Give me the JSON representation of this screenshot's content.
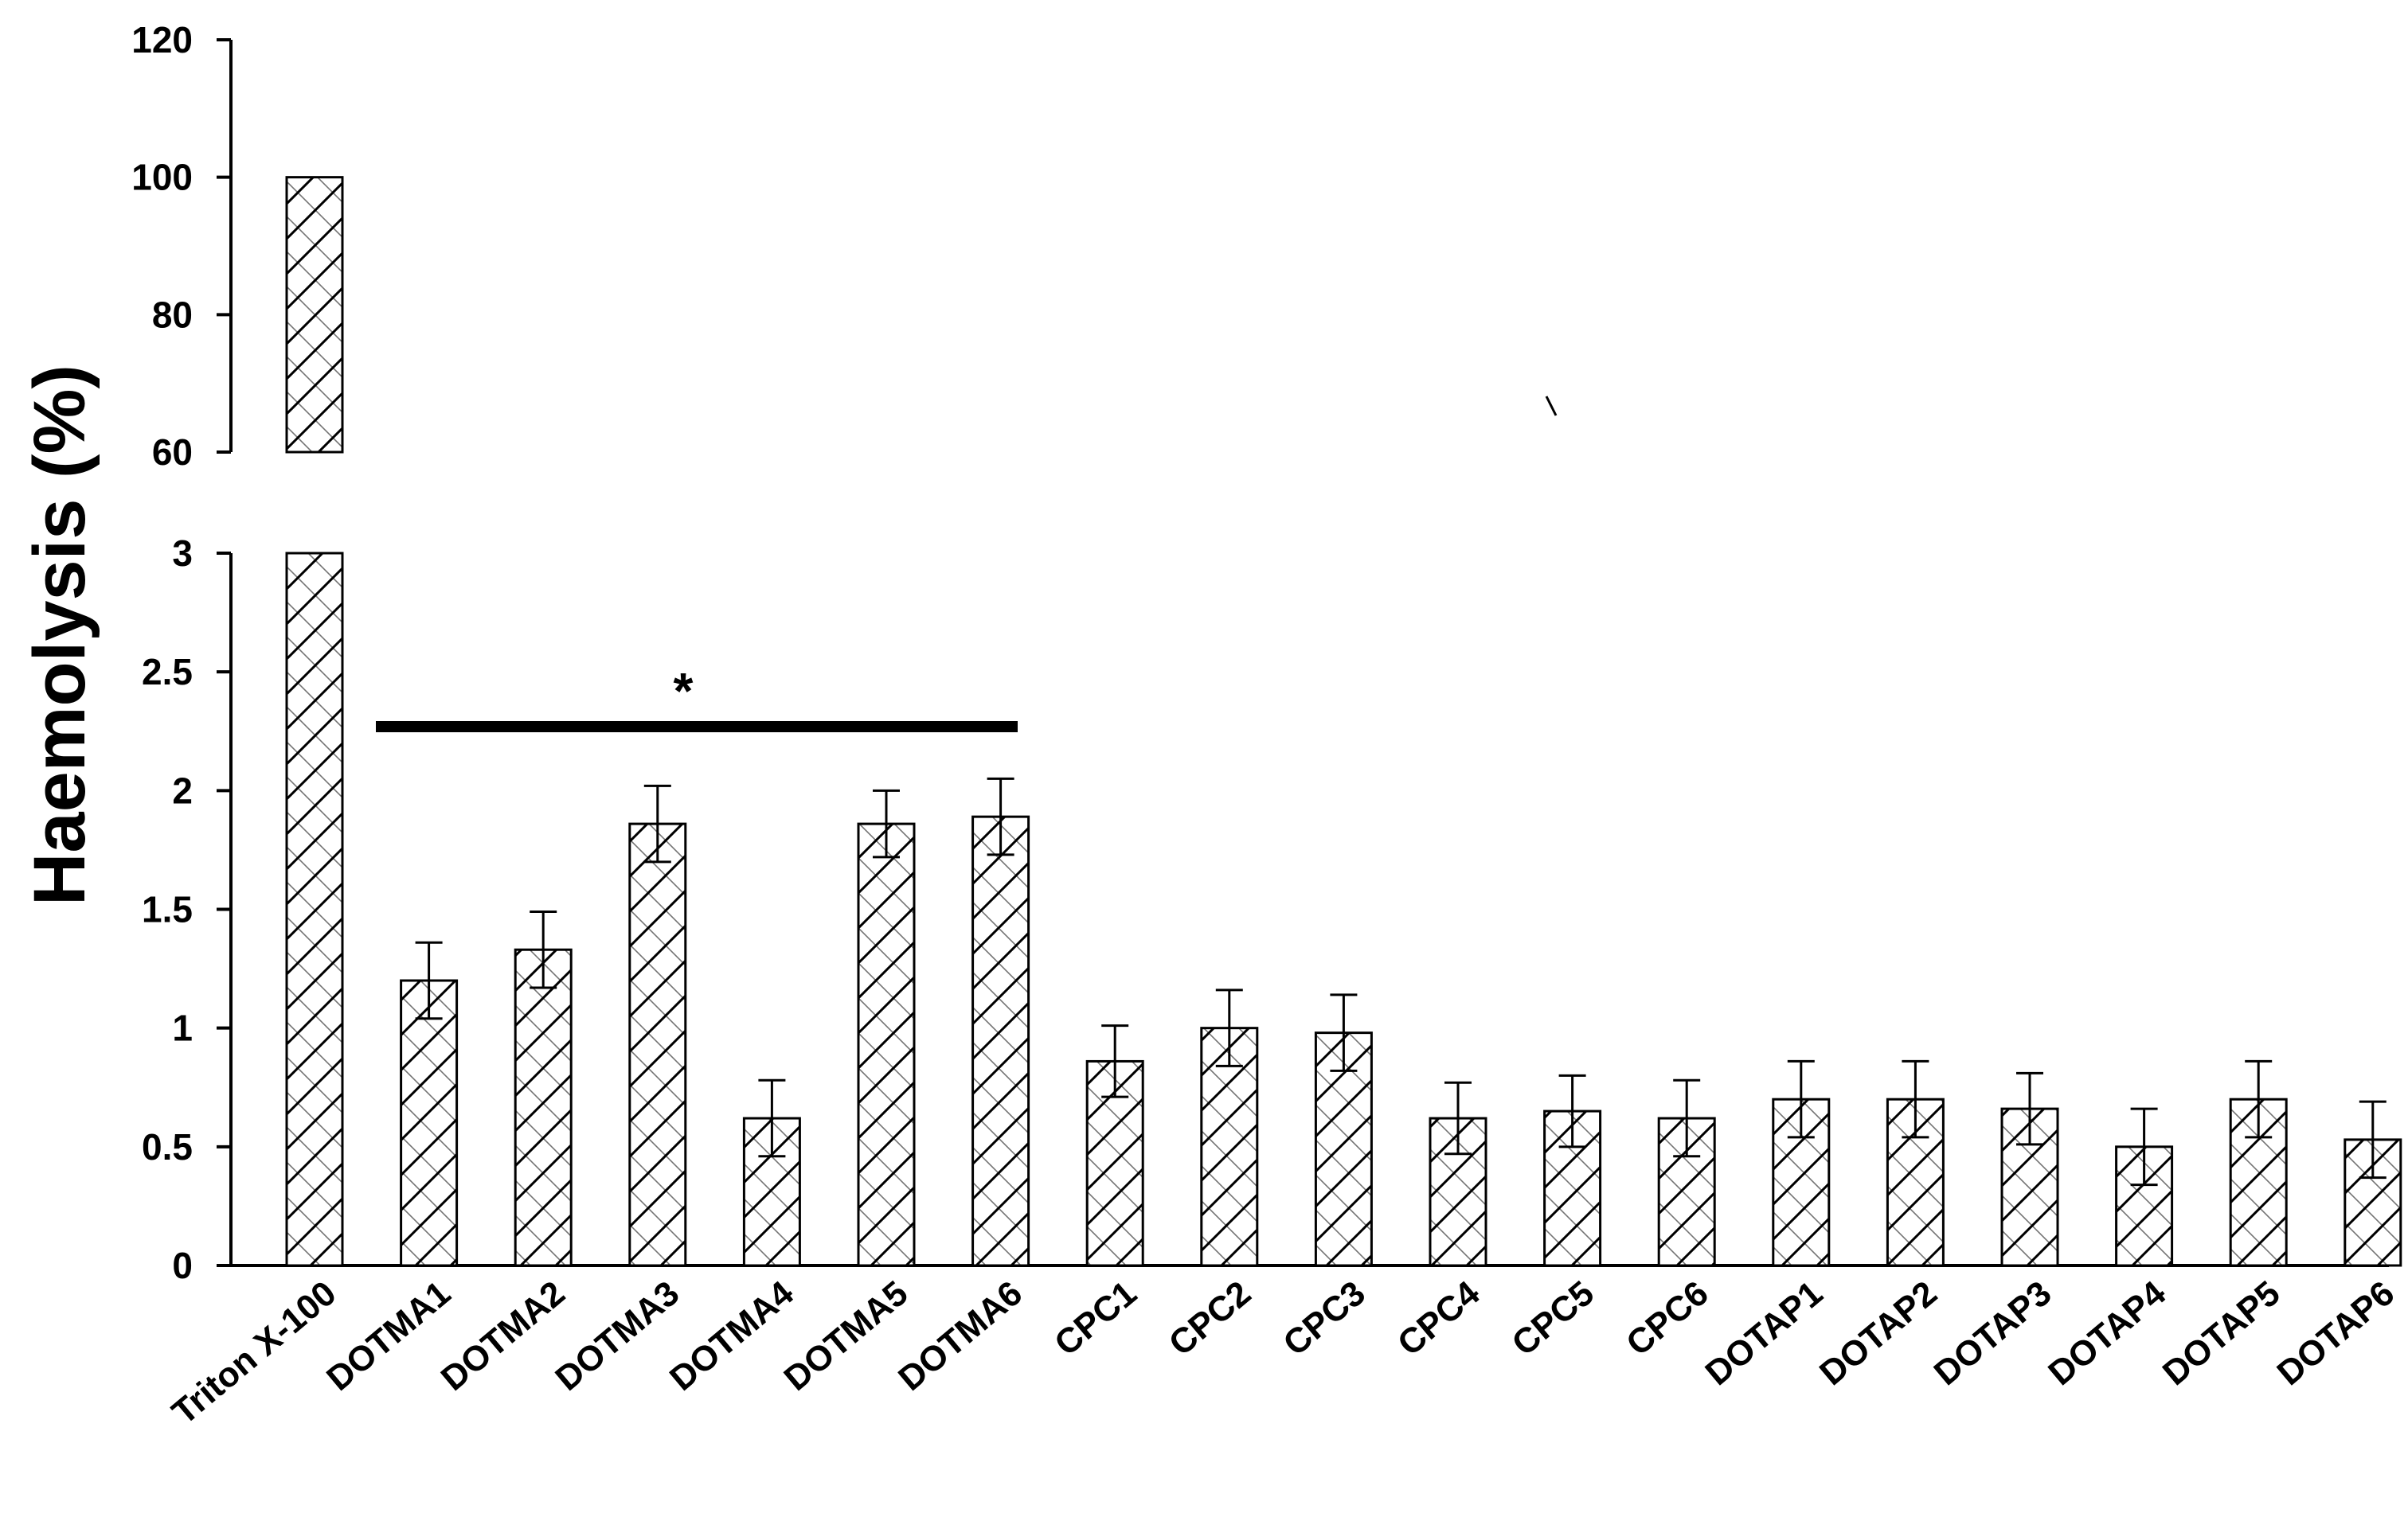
{
  "chart_data": {
    "type": "bar",
    "title": "",
    "xlabel": "",
    "ylabel": "Haemolysis (%)",
    "broken_axis": true,
    "lower_segment": {
      "ylim": [
        0,
        3
      ],
      "ticks": [
        "0",
        "0.5",
        "1",
        "1.5",
        "2",
        "2.5",
        "3"
      ]
    },
    "upper_segment": {
      "ylim": [
        60,
        120
      ],
      "ticks": [
        "60",
        "80",
        "100",
        "120"
      ]
    },
    "categories": [
      "Triton X-100",
      "DOTMA1",
      "DOTMA2",
      "DOTMA3",
      "DOTMA4",
      "DOTMA5",
      "DOTMA6",
      "CPC1",
      "CPC2",
      "CPC3",
      "CPC4",
      "CPC5",
      "CPC6",
      "DOTAP1",
      "DOTAP2",
      "DOTAP3",
      "DOTAP4",
      "DOTAP5",
      "DOTAP6"
    ],
    "values": [
      100,
      1.2,
      1.33,
      1.86,
      0.62,
      1.86,
      1.89,
      0.86,
      1.0,
      0.98,
      0.62,
      0.65,
      0.62,
      0.7,
      0.7,
      0.66,
      0.5,
      0.7,
      0.53
    ],
    "errors": [
      0,
      0.16,
      0.16,
      0.16,
      0.16,
      0.14,
      0.16,
      0.15,
      0.16,
      0.16,
      0.15,
      0.15,
      0.16,
      0.16,
      0.16,
      0.15,
      0.16,
      0.16,
      0.16
    ],
    "fill_pattern": "diagonal-hatch",
    "grid": false,
    "legend": "none",
    "significance": {
      "label": "*",
      "from": "DOTMA1",
      "to": "DOTMA6"
    }
  }
}
